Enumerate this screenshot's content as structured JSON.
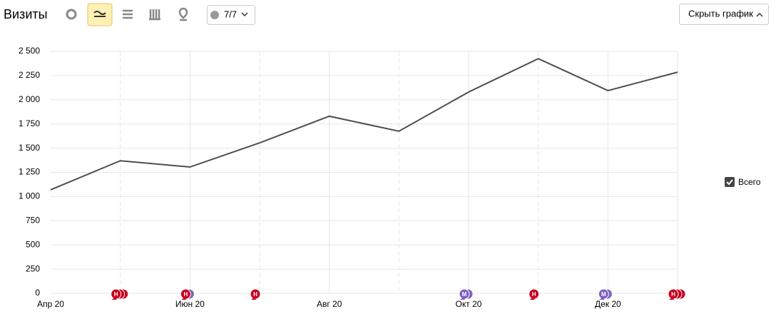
{
  "toolbar": {
    "title": "Визиты",
    "counter": "7/7",
    "hide_button": "Скрыть график"
  },
  "chart_data": {
    "type": "line",
    "categories": [
      "Апр 20",
      null,
      "Июн 20",
      null,
      "Авг 20",
      null,
      "Окт 20",
      null,
      "Дек 20",
      null
    ],
    "series": [
      {
        "name": "Всего",
        "color": "#4d4d4d",
        "values": [
          1070,
          1370,
          1305,
          1555,
          1830,
          1675,
          2080,
          2425,
          2095,
          2285
        ]
      }
    ],
    "ylim": [
      0,
      2500
    ],
    "yticks": [
      0,
      250,
      500,
      750,
      {
        "value": 1000,
        "label": "1 000"
      },
      {
        "value": 1250,
        "label": "1 250"
      },
      {
        "value": 1500,
        "label": "1 500"
      },
      {
        "value": 1750,
        "label": "1 750"
      },
      {
        "value": 2000,
        "label": "2 000"
      },
      {
        "value": 2250,
        "label": "2 250"
      },
      {
        "value": 2500,
        "label": "2 500"
      }
    ],
    "grid": true,
    "annotations": [
      {
        "at": 1,
        "text": "Н",
        "colors": [
          "#c8001e",
          "#c8001e",
          "#c8001e"
        ]
      },
      {
        "at": 2,
        "text": "Н",
        "colors": [
          "#c8001e",
          "#7e5fbf"
        ]
      },
      {
        "at": 3,
        "text": "Н",
        "colors": [
          "#c8001e"
        ]
      },
      {
        "at": 6,
        "text": "М",
        "colors": [
          "#7e5fbf",
          "#7e5fbf"
        ]
      },
      {
        "at": 7,
        "text": "Н",
        "colors": [
          "#c8001e"
        ]
      },
      {
        "at": 8,
        "text": "М",
        "colors": [
          "#7e5fbf",
          "#7e5fbf"
        ]
      },
      {
        "at": 9,
        "text": "Н",
        "colors": [
          "#c8001e",
          "#c8001e",
          "#c8001e"
        ]
      }
    ]
  }
}
